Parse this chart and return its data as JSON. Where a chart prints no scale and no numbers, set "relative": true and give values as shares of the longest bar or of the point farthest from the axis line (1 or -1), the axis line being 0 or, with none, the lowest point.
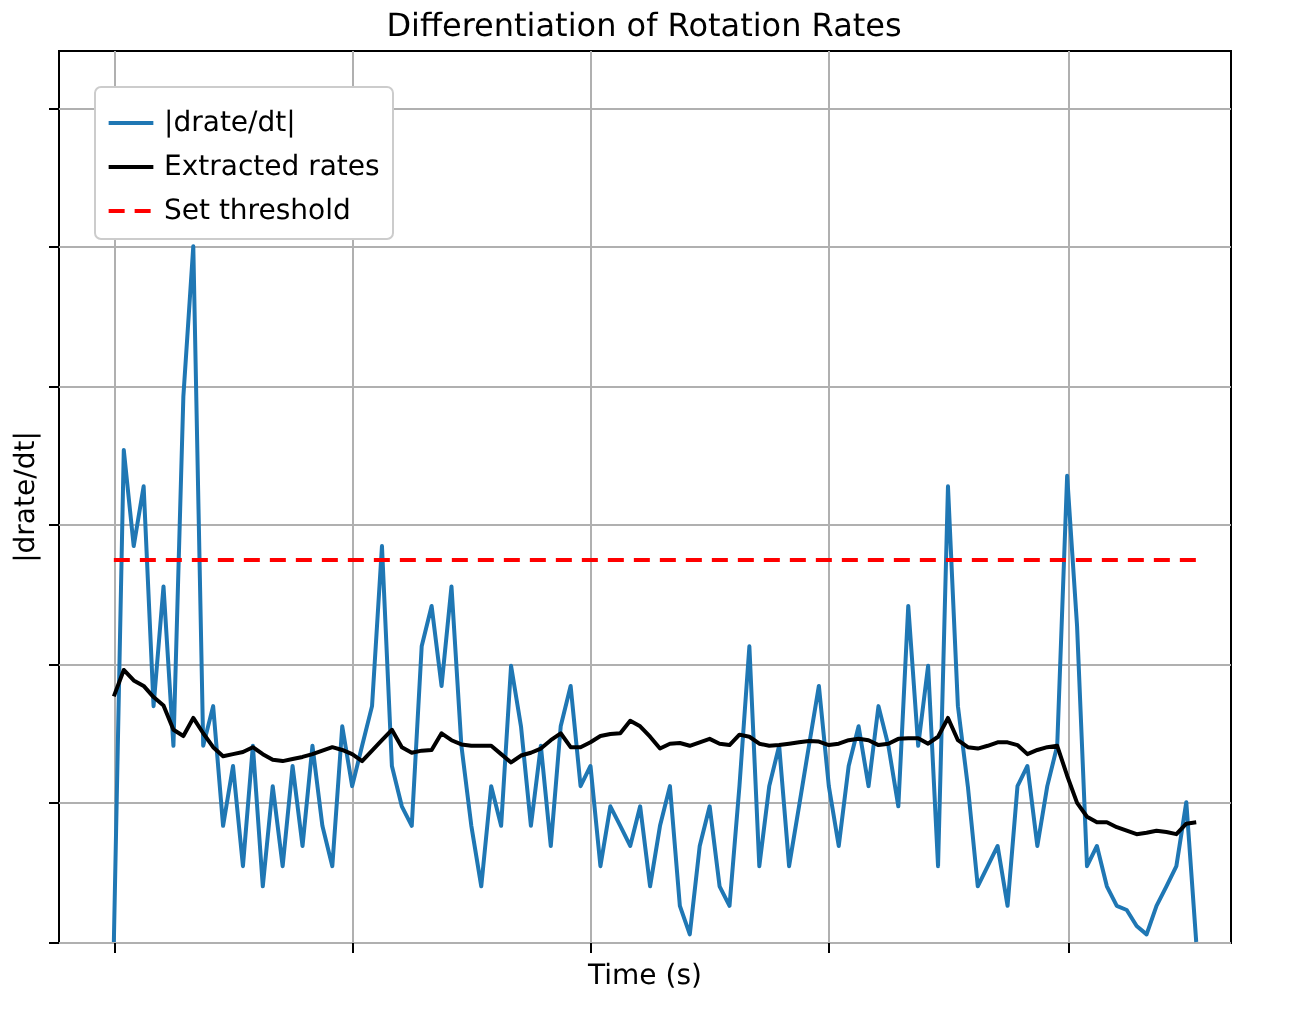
{
  "chart_data": {
    "type": "line",
    "title": "Differentiation of Rotation Rates",
    "xlabel": "Time (s)",
    "ylabel": "|drate/dt|",
    "relative": true,
    "grid": true,
    "legend": "top left",
    "tick_labels": false,
    "categories": [
      null,
      null,
      null,
      null,
      null,
      null,
      null,
      null,
      null,
      null,
      null,
      null,
      null,
      null,
      null,
      null,
      null,
      null,
      null,
      null,
      null,
      null,
      null,
      null,
      null,
      null,
      null,
      null,
      null,
      null,
      null,
      null,
      null,
      null,
      null,
      null,
      null,
      null,
      null,
      null,
      null,
      null,
      null,
      null,
      null,
      null,
      null,
      null,
      null,
      null,
      null,
      null,
      null,
      null,
      null,
      null,
      null,
      null,
      null,
      null,
      null,
      null,
      null,
      null,
      null,
      null,
      null,
      null,
      null,
      null,
      null,
      null,
      null,
      null,
      null,
      null,
      null,
      null,
      null,
      null,
      null,
      null,
      null,
      null,
      null,
      null,
      null,
      null,
      null,
      null,
      null,
      null,
      null,
      null,
      null,
      null,
      null,
      null,
      null,
      null,
      null,
      null,
      null,
      null,
      null,
      null,
      null,
      null,
      null,
      null
    ],
    "series": [
      {
        "name": "|drate/dt|",
        "color": "#1f77b4",
        "line_style": "solid",
        "values": [
          0,
          0.707,
          0.569,
          0.655,
          0.339,
          0.511,
          0.282,
          0.784,
          1.0,
          0.282,
          0.339,
          0.167,
          0.253,
          0.109,
          0.282,
          0.08,
          0.224,
          0.109,
          0.253,
          0.138,
          0.282,
          0.167,
          0.109,
          0.31,
          0.224,
          0.282,
          0.339,
          0.569,
          0.253,
          0.195,
          0.167,
          0.425,
          0.483,
          0.368,
          0.511,
          0.282,
          0.167,
          0.08,
          0.224,
          0.167,
          0.397,
          0.31,
          0.167,
          0.282,
          0.138,
          0.31,
          0.368,
          0.224,
          0.253,
          0.109,
          0.195,
          0.167,
          0.138,
          0.195,
          0.08,
          0.167,
          0.224,
          0.052,
          0.011,
          0.138,
          0.195,
          0.08,
          0.052,
          0.224,
          0.425,
          0.109,
          0.224,
          0.282,
          0.109,
          0.195,
          0.282,
          0.368,
          0.224,
          0.138,
          0.253,
          0.31,
          0.224,
          0.339,
          0.282,
          0.195,
          0.483,
          0.282,
          0.397,
          0.109,
          0.655,
          0.339,
          0.224,
          0.08,
          0.109,
          0.138,
          0.052,
          0.224,
          0.253,
          0.138,
          0.224,
          0.282,
          0.67,
          0.454,
          0.109,
          0.138,
          0.08,
          0.052,
          0.046,
          0.023,
          0.011,
          0.052,
          0.08,
          0.109,
          0.201,
          0
        ]
      },
      {
        "name": "Extracted rates",
        "color": "#000000",
        "line_style": "solid",
        "values": [
          0.353,
          0.391,
          0.376,
          0.368,
          0.352,
          0.34,
          0.305,
          0.296,
          0.322,
          0.3,
          0.28,
          0.267,
          0.27,
          0.273,
          0.28,
          0.27,
          0.262,
          0.26,
          0.263,
          0.266,
          0.27,
          0.275,
          0.28,
          0.276,
          0.27,
          0.26,
          0.275,
          0.29,
          0.305,
          0.28,
          0.272,
          0.275,
          0.276,
          0.3,
          0.29,
          0.284,
          0.282,
          0.282,
          0.282,
          0.27,
          0.258,
          0.268,
          0.272,
          0.278,
          0.29,
          0.3,
          0.28,
          0.28,
          0.287,
          0.296,
          0.299,
          0.3,
          0.318,
          0.31,
          0.295,
          0.278,
          0.285,
          0.286,
          0.282,
          0.287,
          0.292,
          0.285,
          0.283,
          0.298,
          0.295,
          0.285,
          0.282,
          0.283,
          0.285,
          0.287,
          0.289,
          0.288,
          0.283,
          0.285,
          0.29,
          0.292,
          0.29,
          0.283,
          0.285,
          0.292,
          0.293,
          0.293,
          0.285,
          0.295,
          0.322,
          0.29,
          0.28,
          0.278,
          0.282,
          0.287,
          0.287,
          0.283,
          0.27,
          0.276,
          0.28,
          0.282,
          0.239,
          0.2,
          0.18,
          0.172,
          0.172,
          0.165,
          0.16,
          0.155,
          0.157,
          0.16,
          0.158,
          0.155,
          0.17,
          0.172
        ]
      },
      {
        "name": "Set threshold",
        "color": "#ff0000",
        "line_style": "dashed",
        "values": [
          0.549,
          0.549,
          0.549,
          0.549,
          0.549,
          0.549,
          0.549,
          0.549,
          0.549,
          0.549,
          0.549,
          0.549,
          0.549,
          0.549,
          0.549,
          0.549,
          0.549,
          0.549,
          0.549,
          0.549,
          0.549,
          0.549,
          0.549,
          0.549,
          0.549,
          0.549,
          0.549,
          0.549,
          0.549,
          0.549,
          0.549,
          0.549,
          0.549,
          0.549,
          0.549,
          0.549,
          0.549,
          0.549,
          0.549,
          0.549,
          0.549,
          0.549,
          0.549,
          0.549,
          0.549,
          0.549,
          0.549,
          0.549,
          0.549,
          0.549,
          0.549,
          0.549,
          0.549,
          0.549,
          0.549,
          0.549,
          0.549,
          0.549,
          0.549,
          0.549,
          0.549,
          0.549,
          0.549,
          0.549,
          0.549,
          0.549,
          0.549,
          0.549,
          0.549,
          0.549,
          0.549,
          0.549,
          0.549,
          0.549,
          0.549,
          0.549,
          0.549,
          0.549,
          0.549,
          0.549,
          0.549,
          0.549,
          0.549,
          0.549,
          0.549,
          0.549,
          0.549,
          0.549,
          0.549,
          0.549,
          0.549,
          0.549,
          0.549,
          0.549,
          0.549,
          0.549,
          0.549,
          0.549,
          0.549,
          0.549,
          0.549,
          0.549,
          0.549,
          0.549,
          0.549,
          0.549,
          0.549,
          0.549,
          0.549,
          0.549
        ]
      }
    ]
  }
}
